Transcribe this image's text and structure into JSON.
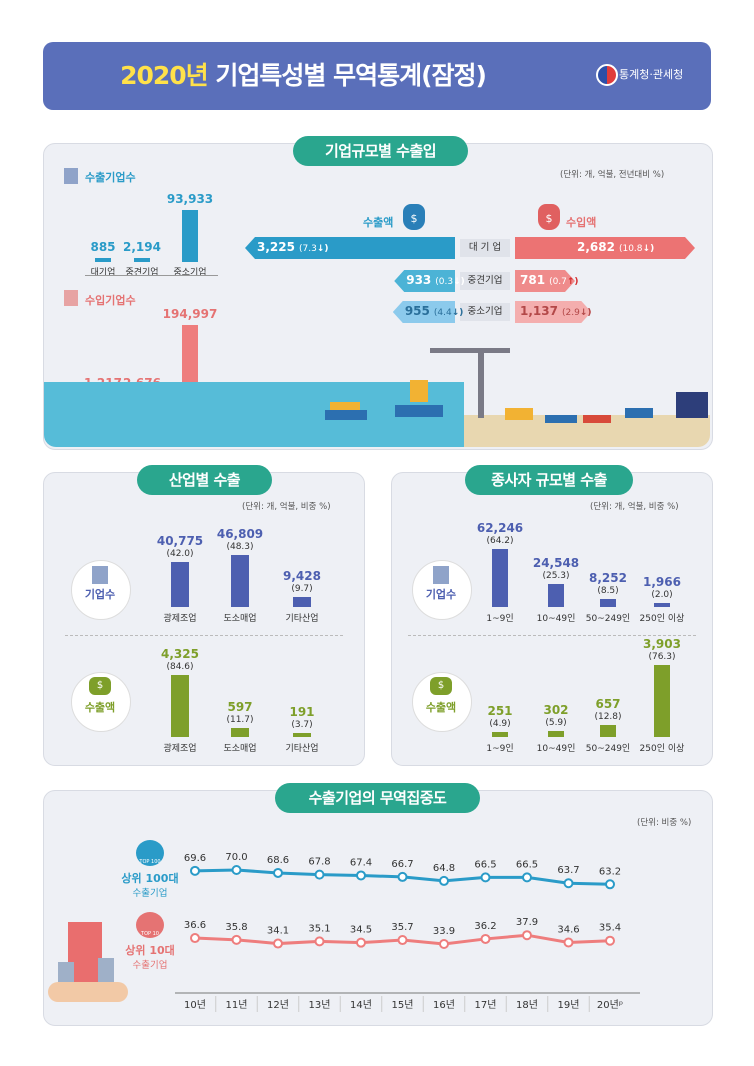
{
  "header": {
    "title_year": "2020년",
    "title_rest": " 기업특성별 무역통계(잠정)",
    "org": "통계청·관세청"
  },
  "section1": {
    "title": "기업규모별 수출입",
    "unit": "(단위: 개, 억불, 전년대비 %)",
    "export_firms_label": "수출기업수",
    "import_firms_label": "수입기업수",
    "export_amount_label": "수출액",
    "import_amount_label": "수입액",
    "sizes": [
      "대 기 업",
      "중견기업",
      "중소기업"
    ]
  },
  "section2": {
    "title": "산업별 수출",
    "unit": "(단위: 개, 억불, 비중 %)",
    "firms_label": "기업수",
    "export_label": "수출액"
  },
  "section3": {
    "title": "종사자 규모별 수출",
    "unit": "(단위: 개, 억불, 비중 %)",
    "firms_label": "기업수",
    "export_label": "수출액"
  },
  "section4": {
    "title": "수출기업의 무역집중도",
    "unit": "(단위: 비중 %)",
    "top100_badge": "TOP 100",
    "top10_badge": "TOP 10",
    "top100_label1": "상위 100대",
    "top100_label2": "수출기업",
    "top10_label1": "상위 10대",
    "top10_label2": "수출기업"
  },
  "colors": {
    "header": "#5a6fba",
    "pill": "#2aa68e",
    "export_blue": "#2a9bc8",
    "import_red": "#e57373",
    "navy": "#4d5fb0",
    "olive": "#7e9f2a"
  },
  "chart_data": [
    {
      "type": "bar",
      "title": "수출기업수",
      "categories": [
        "대기업",
        "중견기업",
        "중소기업"
      ],
      "values": [
        885,
        2194,
        93933
      ],
      "value_labels": [
        "885",
        "2,194",
        "93,933"
      ]
    },
    {
      "type": "bar",
      "title": "수입기업수",
      "categories": [
        "대기업",
        "중견기업",
        "중소기업"
      ],
      "values": [
        1217,
        2676,
        194997
      ],
      "value_labels": [
        "1,217",
        "2,676",
        "194,997"
      ]
    },
    {
      "type": "bar",
      "title": "수출액",
      "categories": [
        "대 기 업",
        "중견기업",
        "중소기업"
      ],
      "values": [
        3225,
        933,
        955
      ],
      "value_labels": [
        "3,225",
        "933",
        "955"
      ],
      "change_labels": [
        "(7.3",
        "(0.3",
        "(4.4"
      ],
      "directions": [
        "down",
        "down",
        "down"
      ]
    },
    {
      "type": "bar",
      "title": "수입액",
      "categories": [
        "대 기 업",
        "중견기업",
        "중소기업"
      ],
      "values": [
        2682,
        781,
        1137
      ],
      "value_labels": [
        "2,682",
        "781",
        "1,137"
      ],
      "change_labels": [
        "(10.8",
        "(0.7",
        "(2.9"
      ],
      "directions": [
        "down",
        "up",
        "down"
      ]
    },
    {
      "type": "bar",
      "title": "산업별 수출 - 기업수",
      "categories": [
        "광제조업",
        "도소매업",
        "기타산업"
      ],
      "values": [
        40775,
        46809,
        9428
      ],
      "value_labels": [
        "40,775",
        "46,809",
        "9,428"
      ],
      "shares": [
        "(42.0)",
        "(48.3)",
        "(9.7)"
      ]
    },
    {
      "type": "bar",
      "title": "산업별 수출 - 수출액",
      "categories": [
        "광제조업",
        "도소매업",
        "기타산업"
      ],
      "values": [
        4325,
        597,
        191
      ],
      "value_labels": [
        "4,325",
        "597",
        "191"
      ],
      "shares": [
        "(84.6)",
        "(11.7)",
        "(3.7)"
      ]
    },
    {
      "type": "bar",
      "title": "종사자 규모별 수출 - 기업수",
      "categories": [
        "1~9인",
        "10~49인",
        "50~249인",
        "250인 이상"
      ],
      "values": [
        62246,
        24548,
        8252,
        1966
      ],
      "value_labels": [
        "62,246",
        "24,548",
        "8,252",
        "1,966"
      ],
      "shares": [
        "(64.2)",
        "(25.3)",
        "(8.5)",
        "(2.0)"
      ]
    },
    {
      "type": "bar",
      "title": "종사자 규모별 수출 - 수출액",
      "categories": [
        "1~9인",
        "10~49인",
        "50~249인",
        "250인 이상"
      ],
      "values": [
        251,
        302,
        657,
        3903
      ],
      "value_labels": [
        "251",
        "302",
        "657",
        "3,903"
      ],
      "shares": [
        "(4.9)",
        "(5.9)",
        "(12.8)",
        "(76.3)"
      ]
    },
    {
      "type": "line",
      "title": "수출기업의 무역집중도",
      "x": [
        "10년",
        "11년",
        "12년",
        "13년",
        "14년",
        "15년",
        "16년",
        "17년",
        "18년",
        "19년",
        "20년ᵖ"
      ],
      "series": [
        {
          "name": "상위 100대 수출기업",
          "values": [
            69.6,
            70.0,
            68.6,
            67.8,
            67.4,
            66.7,
            64.8,
            66.5,
            66.5,
            63.7,
            63.2
          ]
        },
        {
          "name": "상위 10대 수출기업",
          "values": [
            36.6,
            35.8,
            34.1,
            35.1,
            34.5,
            35.7,
            33.9,
            36.2,
            37.9,
            34.6,
            35.4
          ]
        }
      ]
    }
  ]
}
